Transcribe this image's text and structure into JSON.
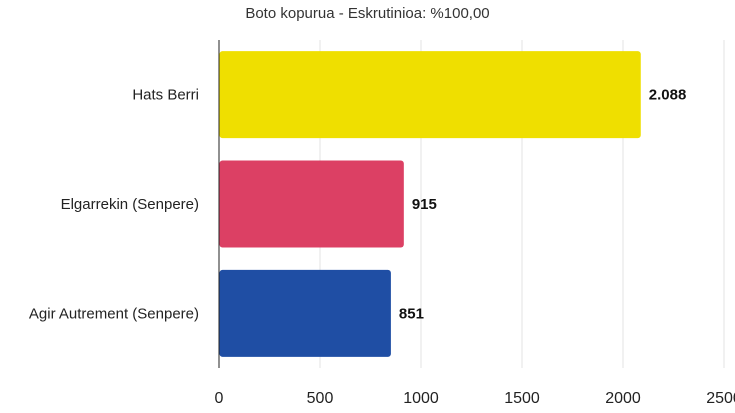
{
  "chart_data": {
    "type": "bar",
    "orientation": "horizontal",
    "title": "Boto kopurua - Eskrutinioa: %100,00",
    "categories": [
      "Hats Berri",
      "Elgarrekin (Senpere)",
      "Agir Autrement (Senpere)"
    ],
    "values": [
      2088,
      915,
      851
    ],
    "value_labels": [
      "2.088",
      "915",
      "851"
    ],
    "colors": [
      "#efdf00",
      "#dc4064",
      "#1f4ea4"
    ],
    "xlim": [
      0,
      2500
    ],
    "xticks": [
      "0",
      "500",
      "1000",
      "1500",
      "2000",
      "2500"
    ],
    "grid": true,
    "xlabel": "",
    "ylabel": ""
  }
}
